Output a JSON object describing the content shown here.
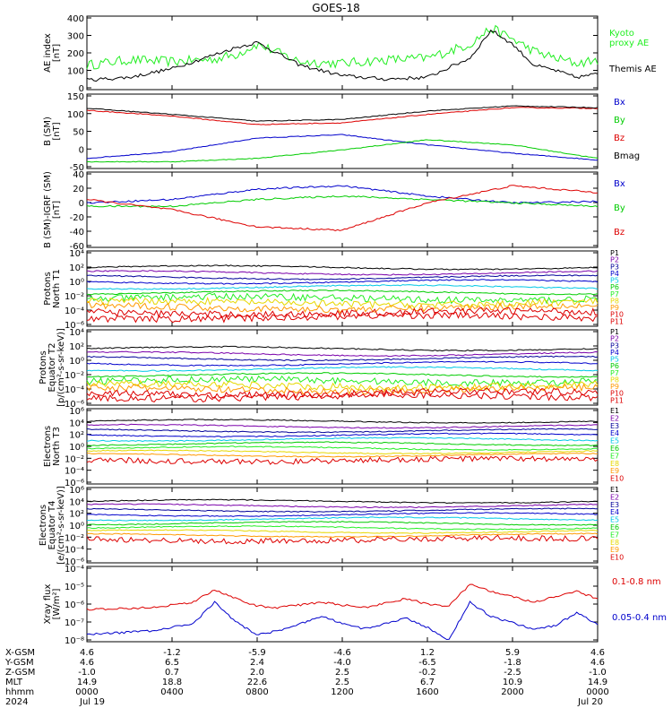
{
  "title": "GOES-18",
  "colors": {
    "black": "#000000",
    "red": "#dd0000",
    "green": "#00cc00",
    "blue": "#0000cc",
    "lime": "#22ee22",
    "orange": "#ff9900",
    "yellow": "#e6d800",
    "cyan": "#00c8e6",
    "purple": "#7a00aa",
    "navy": "#000099"
  },
  "x_ticks": [
    "0000",
    "0400",
    "0800",
    "1200",
    "1600",
    "2000",
    "0000"
  ],
  "chart_data": [
    {
      "panel": "ae",
      "type": "line",
      "ylabel": "AE index\n[nT]",
      "yticks": [
        "400",
        "300",
        "200",
        "100",
        "0"
      ],
      "ylim": [
        0,
        420
      ],
      "series": [
        {
          "name": "Kyoto\nproxy AE",
          "color": "#22ee22",
          "x": [
            0,
            2,
            4,
            6,
            7,
            8,
            10,
            12,
            13,
            14,
            16,
            18,
            19,
            20,
            21,
            22,
            23,
            24
          ],
          "values": [
            140,
            170,
            160,
            175,
            200,
            260,
            160,
            150,
            160,
            170,
            180,
            260,
            350,
            290,
            220,
            180,
            150,
            170
          ]
        },
        {
          "name": "Themis AE",
          "color": "#000000",
          "x": [
            0,
            2,
            4,
            6,
            7,
            8,
            10,
            12,
            13,
            14,
            16,
            18,
            19,
            20,
            21,
            22,
            23,
            24
          ],
          "values": [
            55,
            70,
            120,
            200,
            240,
            270,
            140,
            80,
            70,
            60,
            70,
            180,
            340,
            260,
            140,
            110,
            70,
            90
          ]
        }
      ]
    },
    {
      "panel": "bsm",
      "type": "line",
      "ylabel": "B (SM)\n[nT]",
      "yticks": [
        "150",
        "100",
        "50",
        "0",
        "-50"
      ],
      "ylim": [
        -60,
        160
      ],
      "series": [
        {
          "name": "Bx",
          "color": "#0000cc",
          "x": [
            0,
            4,
            8,
            12,
            16,
            20,
            24
          ],
          "values": [
            -30,
            -10,
            30,
            40,
            10,
            -15,
            -35
          ]
        },
        {
          "name": "By",
          "color": "#00cc00",
          "x": [
            0,
            4,
            8,
            12,
            16,
            20,
            24
          ],
          "values": [
            -40,
            -40,
            -30,
            -5,
            25,
            10,
            -30
          ]
        },
        {
          "name": "Bz",
          "color": "#dd0000",
          "x": [
            0,
            4,
            8,
            12,
            16,
            20,
            24
          ],
          "values": [
            112,
            95,
            70,
            75,
            100,
            120,
            118
          ]
        },
        {
          "name": "Bmag",
          "color": "#000000",
          "x": [
            0,
            4,
            8,
            12,
            16,
            20,
            24
          ],
          "values": [
            118,
            100,
            80,
            85,
            110,
            125,
            120
          ]
        }
      ]
    },
    {
      "panel": "bigrf",
      "type": "line",
      "ylabel": "B (SM)-IGRF (SM)\n[nT]",
      "yticks": [
        "40",
        "20",
        "0",
        "-20",
        "-40",
        "-60"
      ],
      "ylim": [
        -65,
        45
      ],
      "series": [
        {
          "name": "Bx",
          "color": "#0000cc",
          "x": [
            0,
            4,
            8,
            12,
            16,
            20,
            24
          ],
          "values": [
            0,
            5,
            20,
            25,
            10,
            0,
            2
          ]
        },
        {
          "name": "By",
          "color": "#00cc00",
          "x": [
            0,
            4,
            8,
            12,
            16,
            20,
            24
          ],
          "values": [
            -5,
            -5,
            5,
            10,
            5,
            0,
            -5
          ]
        },
        {
          "name": "Bz",
          "color": "#dd0000",
          "x": [
            0,
            4,
            8,
            12,
            16,
            20,
            24
          ],
          "values": [
            5,
            -10,
            -35,
            -40,
            0,
            25,
            15
          ]
        }
      ]
    },
    {
      "panel": "protons_north",
      "type": "line",
      "yscale": "log",
      "ylabel": "Protons\nNorth T1",
      "yticks": [
        "10⁴",
        "10²",
        "10⁰",
        "10⁻²",
        "10⁻⁴",
        "10⁻⁶"
      ],
      "ylim_exp": [
        -6,
        4
      ],
      "series": [
        {
          "name": "P1",
          "color": "#000000",
          "level_exp": 1.8
        },
        {
          "name": "P2",
          "color": "#7a00aa",
          "level_exp": 1.1
        },
        {
          "name": "P3",
          "color": "#000099",
          "level_exp": 0.5
        },
        {
          "name": "P4",
          "color": "#0000cc",
          "level_exp": -0.1
        },
        {
          "name": "P5",
          "color": "#00c8e6",
          "level_exp": -0.8
        },
        {
          "name": "P6",
          "color": "#00cc00",
          "level_exp": -1.5
        },
        {
          "name": "P7",
          "color": "#22ee22",
          "level_exp": -2.3
        },
        {
          "name": "P8",
          "color": "#e6d800",
          "level_exp": -2.9
        },
        {
          "name": "P9",
          "color": "#ff9900",
          "level_exp": -3.5
        },
        {
          "name": "P10",
          "color": "#dd0000",
          "level_exp": -4.2
        },
        {
          "name": "P11",
          "color": "#dd0000",
          "level_exp": -4.8
        }
      ]
    },
    {
      "panel": "protons_equator",
      "type": "line",
      "yscale": "log",
      "ylabel": "Protons\nEquator T2\n[p/(cm²-s-sr-keV)]",
      "yticks": [
        "10⁴",
        "10²",
        "10⁰",
        "10⁻²",
        "10⁻⁴",
        "10⁻⁶"
      ],
      "ylim_exp": [
        -6,
        4
      ],
      "series": [
        {
          "name": "P1",
          "color": "#000000",
          "level_exp": 1.5
        },
        {
          "name": "P2",
          "color": "#7a00aa",
          "level_exp": 0.8
        },
        {
          "name": "P3",
          "color": "#000099",
          "level_exp": 0.2
        },
        {
          "name": "P4",
          "color": "#0000cc",
          "level_exp": -0.5
        },
        {
          "name": "P5",
          "color": "#00c8e6",
          "level_exp": -1.2
        },
        {
          "name": "P6",
          "color": "#00cc00",
          "level_exp": -2.0
        },
        {
          "name": "P7",
          "color": "#22ee22",
          "level_exp": -2.8
        },
        {
          "name": "P8",
          "color": "#e6d800",
          "level_exp": -3.4
        },
        {
          "name": "P9",
          "color": "#ff9900",
          "level_exp": -3.9
        },
        {
          "name": "P10",
          "color": "#dd0000",
          "level_exp": -4.4
        },
        {
          "name": "P11",
          "color": "#dd0000",
          "level_exp": -4.9
        }
      ]
    },
    {
      "panel": "electrons_north",
      "type": "line",
      "yscale": "log",
      "ylabel": "Electrons\nNorth T3",
      "yticks": [
        "10⁶",
        "10⁴",
        "10²",
        "10⁰",
        "10⁻²",
        "10⁻⁴",
        "10⁻⁶"
      ],
      "ylim_exp": [
        -6,
        6
      ],
      "series": [
        {
          "name": "E1",
          "color": "#000000",
          "level_exp": 4.0
        },
        {
          "name": "E2",
          "color": "#7a00aa",
          "level_exp": 3.2
        },
        {
          "name": "E3",
          "color": "#000099",
          "level_exp": 2.5
        },
        {
          "name": "E4",
          "color": "#0000cc",
          "level_exp": 1.8
        },
        {
          "name": "E5",
          "color": "#00c8e6",
          "level_exp": 1.1
        },
        {
          "name": "E6",
          "color": "#00cc00",
          "level_exp": 0.4
        },
        {
          "name": "E7",
          "color": "#22ee22",
          "level_exp": -0.3
        },
        {
          "name": "E8",
          "color": "#e6d800",
          "level_exp": -0.9
        },
        {
          "name": "E9",
          "color": "#ff9900",
          "level_exp": -1.4
        },
        {
          "name": "E10",
          "color": "#dd0000",
          "level_exp": -2.2
        }
      ]
    },
    {
      "panel": "electrons_equator",
      "type": "line",
      "yscale": "log",
      "ylabel": "Electrons\nEquator T4\n[e/(cm²-s-sr-keV)]",
      "yticks": [
        "10⁶",
        "10⁴",
        "10²",
        "10⁰",
        "10⁻²",
        "10⁻⁴",
        "10⁻⁶"
      ],
      "ylim_exp": [
        -6,
        6
      ],
      "series": [
        {
          "name": "E1",
          "color": "#000000",
          "level_exp": 3.8
        },
        {
          "name": "E2",
          "color": "#7a00aa",
          "level_exp": 3.1
        },
        {
          "name": "E3",
          "color": "#000099",
          "level_exp": 2.4
        },
        {
          "name": "E4",
          "color": "#0000cc",
          "level_exp": 1.7
        },
        {
          "name": "E5",
          "color": "#00c8e6",
          "level_exp": 1.0
        },
        {
          "name": "E6",
          "color": "#00cc00",
          "level_exp": 0.3
        },
        {
          "name": "E7",
          "color": "#22ee22",
          "level_exp": -0.4
        },
        {
          "name": "E8",
          "color": "#e6d800",
          "level_exp": -1.0
        },
        {
          "name": "E9",
          "color": "#ff9900",
          "level_exp": -1.6
        },
        {
          "name": "E10",
          "color": "#dd0000",
          "level_exp": -2.3
        }
      ]
    },
    {
      "panel": "xray",
      "type": "line",
      "yscale": "log",
      "ylabel": "Xray flux\n[W/m²]",
      "yticks": [
        "10⁻⁴",
        "10⁻⁵",
        "10⁻⁶",
        "10⁻⁷",
        "10⁻⁸"
      ],
      "ylim_exp": [
        -8.2,
        -4
      ],
      "series": [
        {
          "name": "0.1-0.8 nm",
          "color": "#dd0000",
          "x": [
            0,
            3,
            5,
            6,
            7,
            8,
            9,
            11,
            13,
            15,
            16,
            17,
            18,
            19,
            21,
            22,
            23,
            24
          ],
          "values_exp": [
            -6.4,
            -6.3,
            -6.0,
            -5.3,
            -5.8,
            -6.2,
            -6.3,
            -6.0,
            -6.3,
            -5.8,
            -6.1,
            -6.2,
            -5.0,
            -5.4,
            -6.0,
            -5.7,
            -5.4,
            -5.8
          ]
        },
        {
          "name": "0.05-0.4 nm",
          "color": "#0000cc",
          "x": [
            0,
            3,
            5,
            6,
            7,
            8,
            9,
            11,
            13,
            15,
            16,
            17,
            18,
            19,
            21,
            22,
            23,
            24
          ],
          "values_exp": [
            -7.8,
            -7.6,
            -7.2,
            -6.0,
            -7.1,
            -7.8,
            -7.6,
            -6.8,
            -7.5,
            -6.9,
            -7.4,
            -8.1,
            -6.0,
            -6.8,
            -7.5,
            -7.3,
            -6.6,
            -7.2
          ]
        }
      ]
    }
  ],
  "footer": {
    "rows": [
      {
        "label": "X-GSM",
        "values": [
          "4.6",
          "-1.2",
          "-5.9",
          "-4.6",
          "1.2",
          "5.9",
          "4.6"
        ]
      },
      {
        "label": "Y-GSM",
        "values": [
          "4.6",
          "6.5",
          "2.4",
          "-4.0",
          "-6.5",
          "-1.8",
          "4.6"
        ]
      },
      {
        "label": "Z-GSM",
        "values": [
          "-1.0",
          "0.7",
          "2.0",
          "2.5",
          "-0.2",
          "-2.5",
          "-1.0"
        ]
      },
      {
        "label": "MLT",
        "values": [
          "14.9",
          "18.8",
          "22.6",
          "2.5",
          "6.7",
          "10.9",
          "14.9"
        ]
      },
      {
        "label": "hhmm",
        "values": [
          "0000",
          "0400",
          "0800",
          "1200",
          "1600",
          "2000",
          "0000"
        ]
      },
      {
        "label": "2024",
        "values": [
          "Jul 19",
          "",
          "",
          "",
          "",
          "",
          "Jul 20"
        ]
      }
    ]
  }
}
